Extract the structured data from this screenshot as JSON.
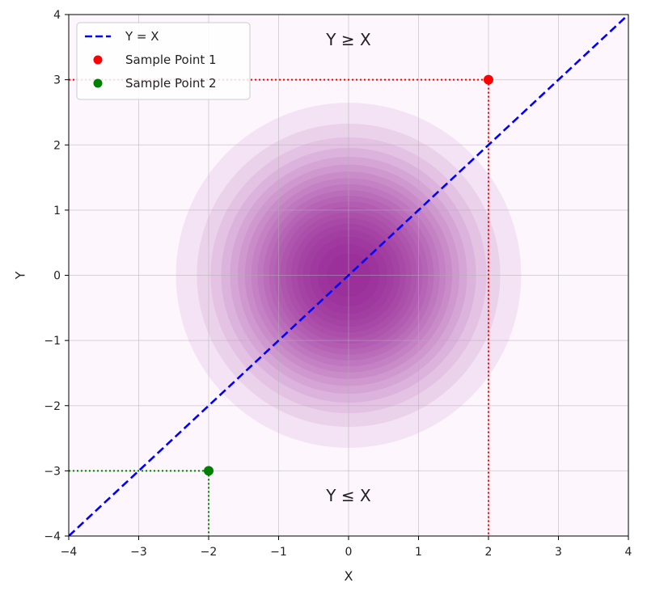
{
  "chart_data": {
    "type": "scatter",
    "title": "",
    "xlabel": "X",
    "ylabel": "Y",
    "xlim": [
      -4,
      4
    ],
    "ylim": [
      -4,
      4
    ],
    "x_ticks": [
      -4,
      -3,
      -2,
      -1,
      0,
      1,
      2,
      3,
      4
    ],
    "y_ticks": [
      -4,
      -3,
      -2,
      -1,
      0,
      1,
      2,
      3,
      4
    ],
    "x_tick_labels": [
      "−4",
      "−3",
      "−2",
      "−1",
      "0",
      "1",
      "2",
      "3",
      "4"
    ],
    "y_tick_labels": [
      "−4",
      "−3",
      "−2",
      "−1",
      "0",
      "1",
      "2",
      "3",
      "4"
    ],
    "grid": true,
    "legend_position": "top-left",
    "background_density": {
      "type": "gaussian-contour",
      "center": [
        0,
        0
      ],
      "color": "#800080",
      "sigma": 1.0
    },
    "line": {
      "name": "Y = X",
      "points": [
        [
          -4,
          -4
        ],
        [
          4,
          4
        ]
      ],
      "style": "dashed",
      "color": "#0000ff"
    },
    "points": [
      {
        "name": "Sample Point 1",
        "x": 2,
        "y": 3,
        "color": "#ff0000"
      },
      {
        "name": "Sample Point 2",
        "x": -2,
        "y": -3,
        "color": "#008000"
      }
    ],
    "annotations": [
      {
        "text": "Y ≥ X",
        "x": 0,
        "y": 3.6
      },
      {
        "text": "Y ≤ X",
        "x": 0,
        "y": -3.4
      }
    ]
  }
}
